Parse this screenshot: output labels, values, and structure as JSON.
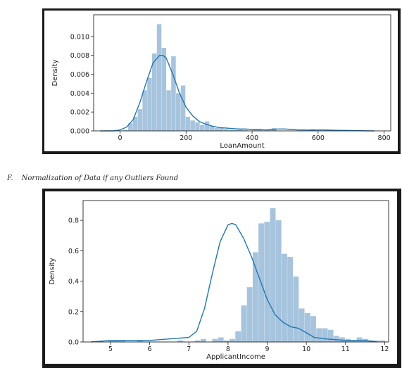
{
  "caption": {
    "number": "F.",
    "text": "Normalization of Data if any Outliers Found"
  },
  "chart_data": [
    {
      "type": "area",
      "kind": "histogram with KDE curve",
      "xlabel": "LoanAmount",
      "ylabel": "Density",
      "xlim": [
        -80,
        820
      ],
      "ylim": [
        0,
        0.0123
      ],
      "xticks": [
        0,
        200,
        400,
        600,
        800
      ],
      "yticks": [
        0.0,
        0.002,
        0.004,
        0.006,
        0.008,
        0.01
      ],
      "ytick_labels": [
        "0.000",
        "0.002",
        "0.004",
        "0.006",
        "0.008",
        "0.010"
      ],
      "grid": false,
      "bar_color": "#a6c4dd",
      "line_color": "#1f77b4",
      "bins": {
        "start": 10,
        "width": 14.5,
        "heights": [
          0.0001,
          0.0008,
          0.0015,
          0.0023,
          0.0043,
          0.0056,
          0.0082,
          0.0113,
          0.0088,
          0.0043,
          0.0079,
          0.004,
          0.0048,
          0.0015,
          0.0011,
          0.0009,
          0.0006,
          0.001,
          0.0005,
          0.0003,
          0.0003,
          0.0002,
          0.0001,
          0.0001,
          0.0002,
          0.0001,
          0.0,
          0.0001,
          0.0001,
          0.0,
          0.0001,
          0.0003,
          0.0,
          0.0,
          0.0,
          0.0,
          0.0,
          0.0,
          0.0,
          0.0002,
          0.0,
          0.0,
          0.0001,
          0.0001,
          0.0,
          0.0,
          0.0001
        ]
      },
      "kde": {
        "x": [
          -60,
          -20,
          0,
          20,
          40,
          60,
          80,
          100,
          120,
          130,
          140,
          160,
          180,
          200,
          220,
          240,
          260,
          280,
          300,
          320,
          340,
          360,
          380,
          400,
          420,
          440,
          460,
          480,
          500,
          520,
          540,
          560,
          580,
          600,
          620,
          640,
          660,
          680,
          700,
          720,
          740,
          770
        ],
        "y": [
          0.0,
          0.0,
          0.0001,
          0.0004,
          0.0012,
          0.003,
          0.0052,
          0.0072,
          0.008,
          0.008,
          0.0077,
          0.006,
          0.004,
          0.0025,
          0.0016,
          0.001,
          0.0007,
          0.0005,
          0.00035,
          0.0003,
          0.00025,
          0.0002,
          0.0002,
          0.00015,
          0.00015,
          0.0001,
          0.00015,
          0.0002,
          0.0002,
          0.00015,
          0.0001,
          0.0001,
          8e-05,
          0.0001,
          0.0001,
          8e-05,
          6e-05,
          5e-05,
          4e-05,
          3e-05,
          1e-05,
          0.0
        ]
      }
    },
    {
      "type": "area",
      "kind": "histogram with KDE curve",
      "xlabel": "ApplicantIncome",
      "ylabel": "Density",
      "xlim": [
        4.3,
        12.1
      ],
      "ylim": [
        0,
        0.93
      ],
      "xticks": [
        5,
        6,
        7,
        8,
        9,
        10,
        11,
        12
      ],
      "yticks": [
        0.0,
        0.2,
        0.4,
        0.6,
        0.8
      ],
      "ytick_labels": [
        "0.0",
        "0.2",
        "0.4",
        "0.6",
        "0.8"
      ],
      "grid": false,
      "bar_color": "#a6c4dd",
      "line_color": "#1f77b4",
      "bins": {
        "start": 4.5,
        "width": 0.1475,
        "heights": [
          0.0,
          0.0,
          0.0,
          0.01,
          0.01,
          0.01,
          0.0,
          0.0,
          0.01,
          0.0,
          0.0,
          0.0,
          0.0,
          0.0,
          0.0,
          0.01,
          0.0,
          0.0,
          0.01,
          0.02,
          0.0,
          0.02,
          0.03,
          0.01,
          0.02,
          0.07,
          0.24,
          0.36,
          0.59,
          0.78,
          0.79,
          0.88,
          0.8,
          0.58,
          0.56,
          0.43,
          0.22,
          0.19,
          0.17,
          0.09,
          0.09,
          0.08,
          0.04,
          0.03,
          0.02,
          0.01,
          0.03,
          0.02,
          0.01,
          0.01,
          0.01,
          0.0
        ]
      },
      "kde": {
        "x": [
          4.5,
          5.0,
          5.5,
          6.0,
          6.5,
          7.0,
          7.2,
          7.4,
          7.6,
          7.8,
          8.0,
          8.1,
          8.2,
          8.4,
          8.6,
          8.8,
          9.0,
          9.2,
          9.4,
          9.6,
          9.8,
          10.0,
          10.2,
          10.5,
          11.0,
          11.5,
          11.8
        ],
        "y": [
          0.0,
          0.01,
          0.01,
          0.01,
          0.02,
          0.03,
          0.07,
          0.22,
          0.45,
          0.66,
          0.77,
          0.78,
          0.77,
          0.68,
          0.56,
          0.42,
          0.28,
          0.18,
          0.13,
          0.1,
          0.09,
          0.06,
          0.03,
          0.02,
          0.01,
          0.01,
          0.0
        ]
      }
    }
  ]
}
